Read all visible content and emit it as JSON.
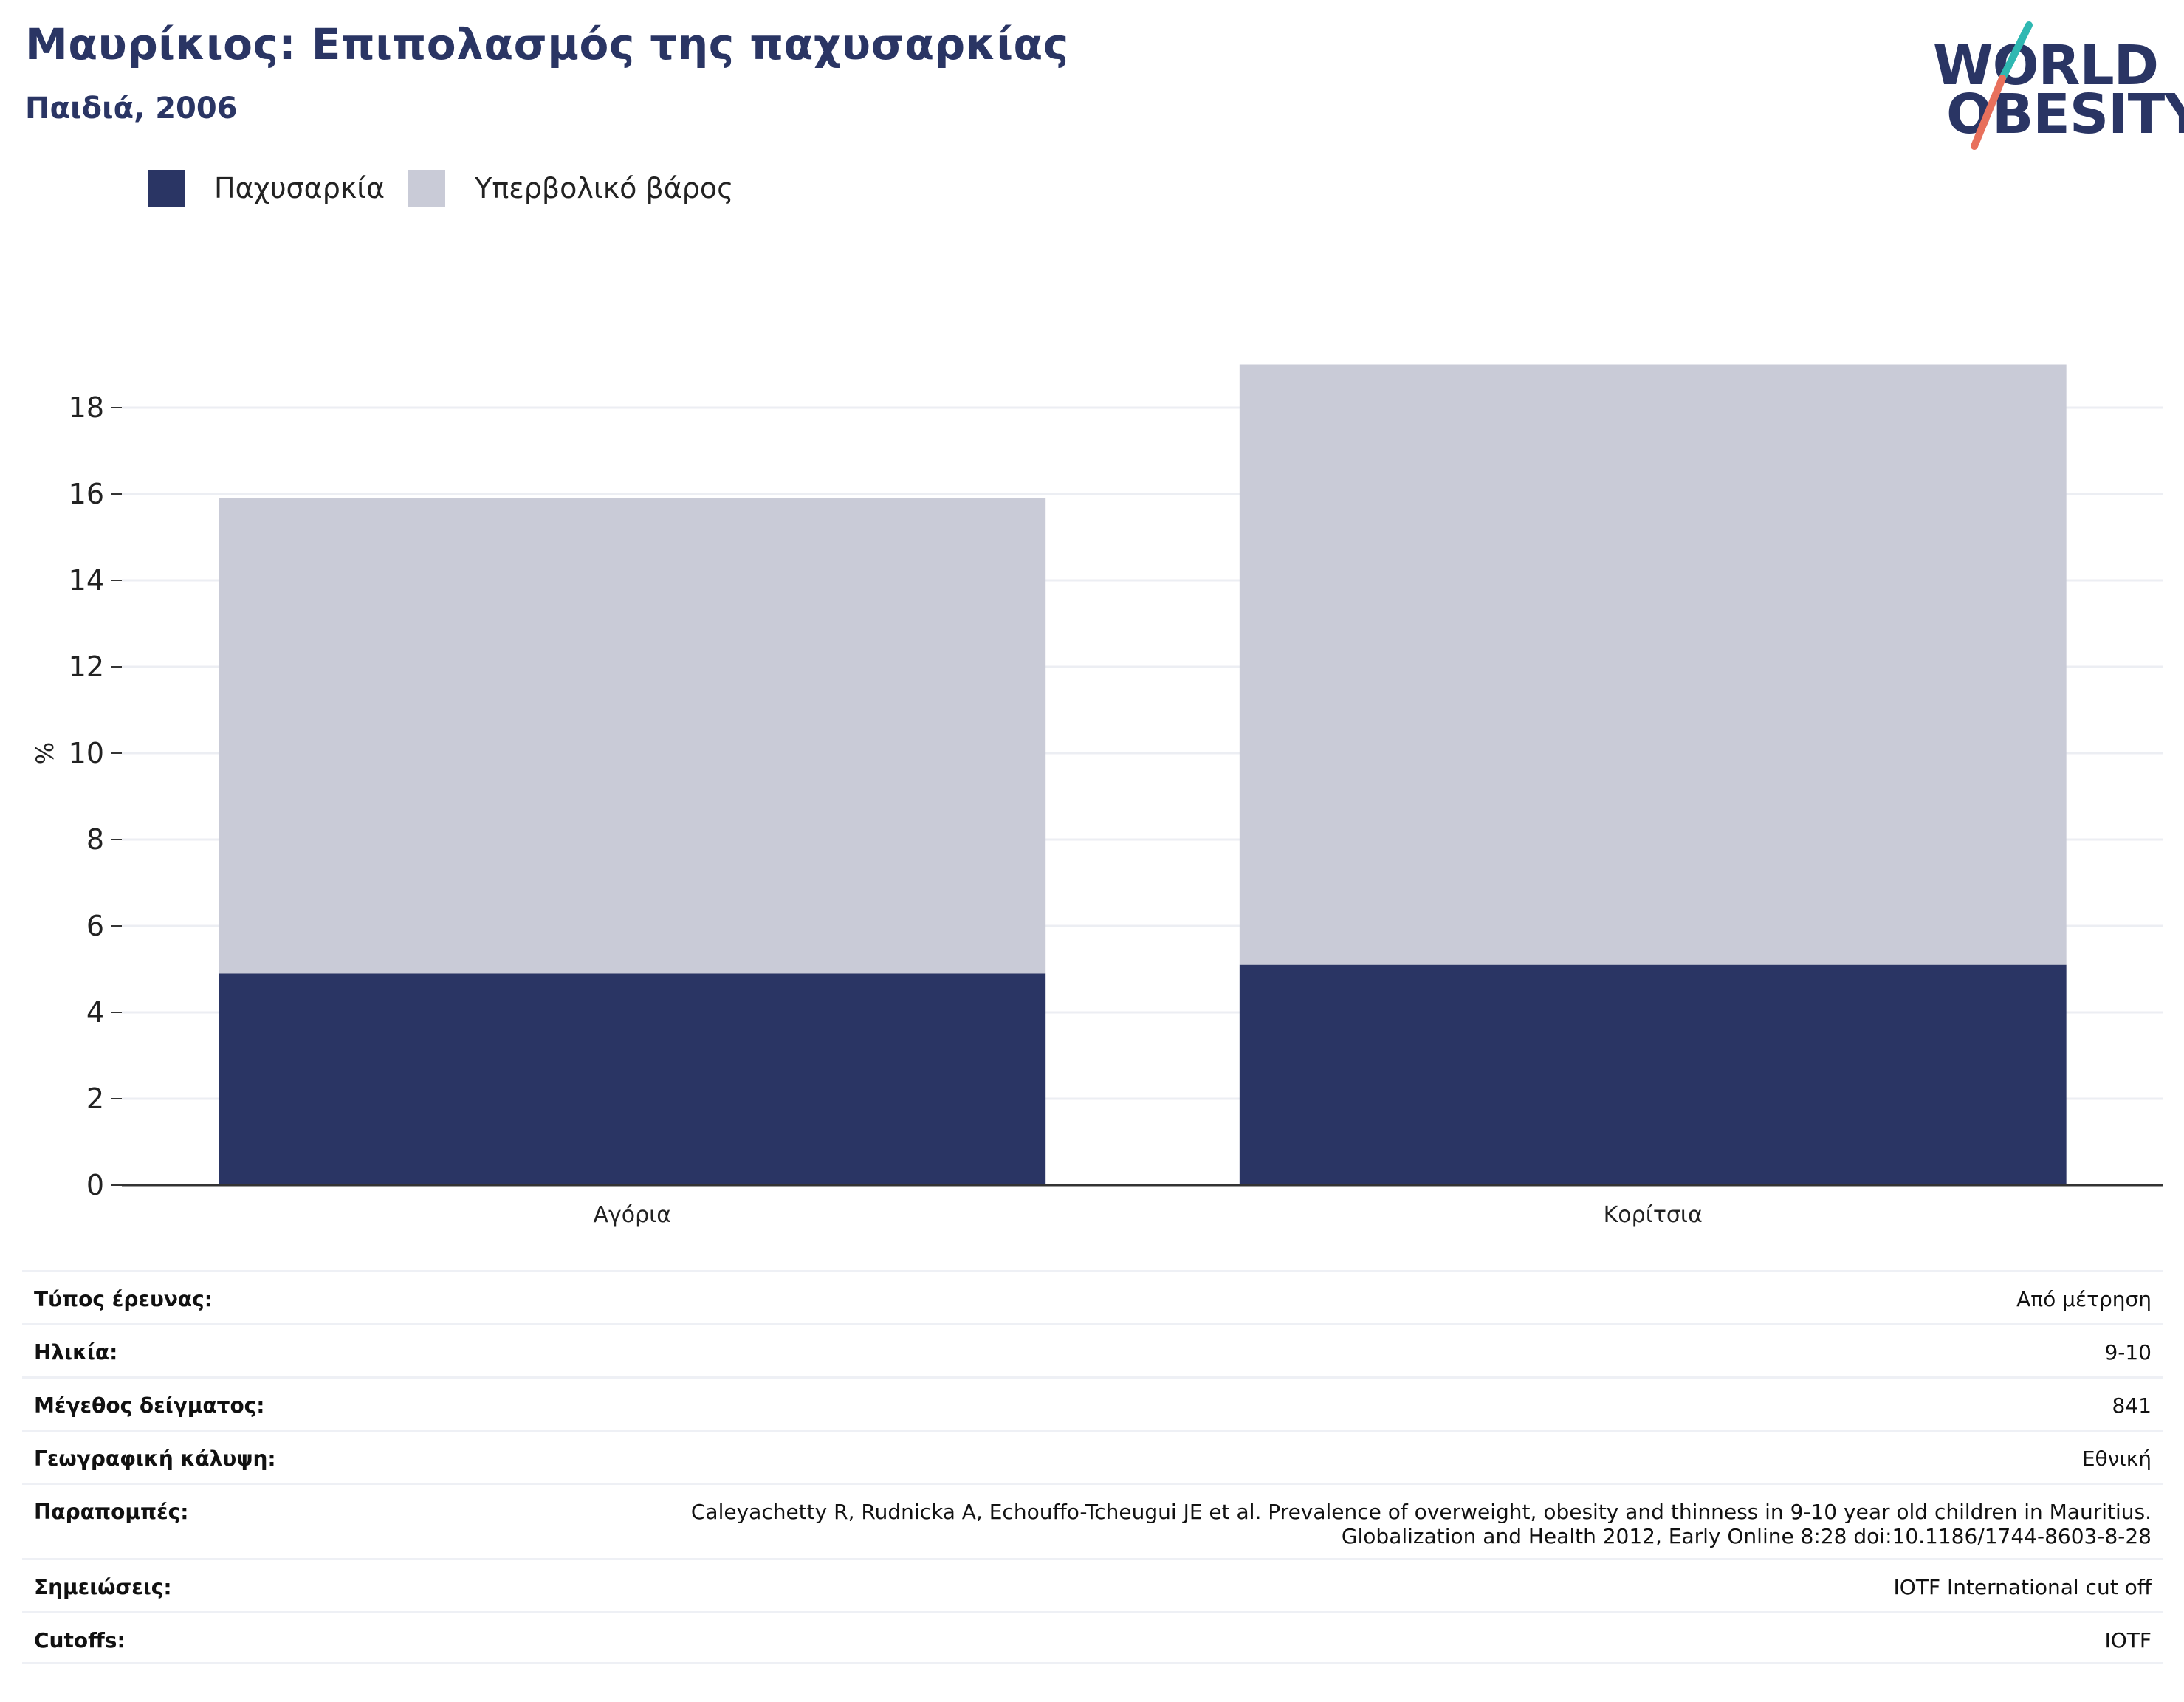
{
  "header": {
    "title": "Μαυρίκιος: Επιπολασμός της παχυσαρκίας",
    "subtitle": "Παιδιά, 2006"
  },
  "logo": {
    "line1": "WORLD",
    "line2": "OBESITY"
  },
  "colors": {
    "obesity": "#2a3564",
    "overweight": "#c9cbd7",
    "accent_teal": "#2fb8b2",
    "accent_coral": "#e8705c"
  },
  "chart_data": {
    "type": "bar",
    "stacked": true,
    "categories": [
      "Αγόρια",
      "Κορίτσια"
    ],
    "series": [
      {
        "name": "Παχυσαρκία",
        "values": [
          4.9,
          5.1
        ],
        "color": "#2a3564"
      },
      {
        "name": "Υπερβολικό βάρος",
        "values": [
          11.0,
          13.9
        ],
        "color": "#c9cbd7"
      }
    ],
    "ylabel": "%",
    "xlabel": "",
    "ylim": [
      0,
      19
    ],
    "yticks": [
      0,
      2,
      4,
      6,
      8,
      10,
      12,
      14,
      16,
      18
    ],
    "grid": true,
    "legend": "top-left"
  },
  "info": [
    {
      "key": "Τύπος έρευνας:",
      "value": "Από μέτρηση"
    },
    {
      "key": "Ηλικία:",
      "value": "9-10"
    },
    {
      "key": "Μέγεθος δείγματος:",
      "value": "841"
    },
    {
      "key": "Γεωγραφική κάλυψη:",
      "value": "Εθνική"
    },
    {
      "key": "Παραπομπές:",
      "value": "Caleyachetty R, Rudnicka A, Echouffo-Tcheugui JE et al. Prevalence of overweight, obesity and thinness in 9-10 year old children in Mauritius.\nGlobalization and Health 2012, Early Online 8:28 doi:10.1186/1744-8603-8-28"
    },
    {
      "key": "Σημειώσεις:",
      "value": "IOTF International cut off"
    },
    {
      "key": "Cutoffs:",
      "value": "IOTF"
    }
  ]
}
